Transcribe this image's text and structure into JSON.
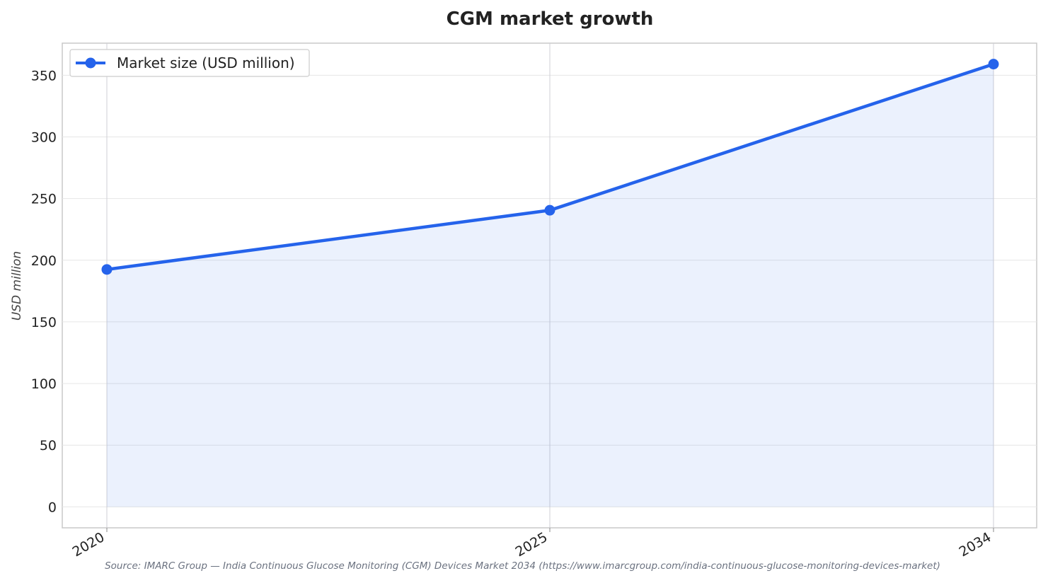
{
  "chart_data": {
    "type": "line",
    "title": "CGM market growth",
    "xlabel": "",
    "ylabel": "USD million",
    "categories": [
      "2020",
      "2025",
      "2034"
    ],
    "series": [
      {
        "name": "Market size (USD million)",
        "values": [
          192.5,
          240.5,
          359.0
        ],
        "color": "#2563eb",
        "fill": "area"
      }
    ],
    "yticks": [
      0,
      50,
      100,
      150,
      200,
      250,
      300,
      350
    ],
    "ylim": [
      -17,
      376
    ],
    "grid": true,
    "legend": "top-left",
    "source": "Source: IMARC Group — India Continuous Glucose Monitoring (CGM) Devices Market 2034 (https://www.imarcgroup.com/india-continuous-glucose-monitoring-devices-market)"
  }
}
